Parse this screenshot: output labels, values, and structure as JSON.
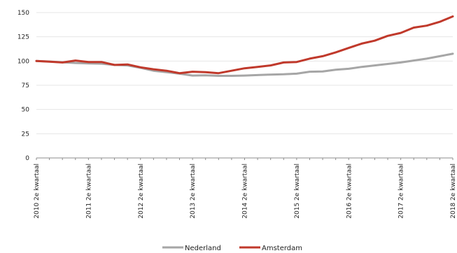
{
  "chart_data": {
    "type": "line",
    "title": "",
    "xlabel": "",
    "ylabel": "",
    "ylim": [
      0,
      150
    ],
    "yticks": [
      "0",
      "25",
      "50",
      "75",
      "100",
      "125",
      "150"
    ],
    "grid": "horizontal",
    "legend_position": "bottom-center",
    "x_tick_labels": [
      "2010 2e kwartaal",
      "2011 2e kwartaal",
      "2012 2e kwartaal",
      "2013 2e kwartaal",
      "2014 2e kwartaal",
      "2015 2e kwartaal",
      "2016 2e kwartaal",
      "2017 2e kwartaal",
      "2018 2e kwartaal"
    ],
    "x_tick_every": 4,
    "series": [
      {
        "name": "Nederland",
        "color": "#a6a6a6",
        "values": [
          100,
          99.5,
          98.7,
          98,
          97.5,
          97.3,
          96,
          95.5,
          93,
          90,
          88.5,
          87,
          85,
          85.3,
          84.7,
          84.7,
          85,
          85.5,
          86,
          86.3,
          87,
          89,
          89.3,
          91,
          92,
          94,
          95.5,
          97,
          98.5,
          100.5,
          102.5,
          105,
          107.5
        ]
      },
      {
        "name": "Amsterdam",
        "color": "#c0392b",
        "values": [
          100,
          99.3,
          98.5,
          100.5,
          99,
          99,
          96,
          96.5,
          93.5,
          91.5,
          90,
          87.5,
          89,
          88.5,
          87.5,
          90,
          92.5,
          94,
          95.5,
          98.5,
          99,
          102.5,
          105,
          109,
          113.5,
          118,
          121,
          126,
          129,
          134.5,
          136.5,
          140.5,
          146
        ]
      }
    ]
  }
}
